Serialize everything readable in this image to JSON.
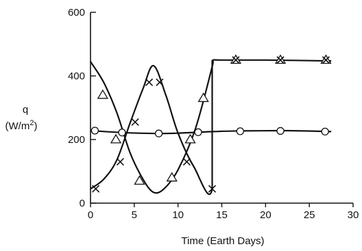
{
  "chart_data": {
    "type": "line",
    "title": "",
    "xlabel": "Time (Earth Days)",
    "ylabel": "q",
    "ylabel_unit_prefix": "(W/m",
    "ylabel_unit_sup": "2",
    "ylabel_unit_suffix": ")",
    "xlim": [
      0,
      30
    ],
    "ylim": [
      0,
      600
    ],
    "xticks": [
      0,
      5,
      10,
      15,
      20,
      25,
      30
    ],
    "yticks": [
      0,
      200,
      400,
      600
    ],
    "grid": false,
    "legend": "none",
    "series": [
      {
        "marker": "circle",
        "curve": [
          [
            0,
            228
          ],
          [
            3.6,
            222
          ],
          [
            7.5,
            219
          ],
          [
            10,
            220
          ],
          [
            14,
            225
          ],
          [
            17,
            227
          ],
          [
            22,
            228
          ],
          [
            27.5,
            225
          ]
        ],
        "points": [
          [
            0.5,
            228
          ],
          [
            3.6,
            222
          ],
          [
            7.8,
            219
          ],
          [
            12.3,
            223
          ],
          [
            17.1,
            226
          ],
          [
            21.7,
            227
          ],
          [
            26.8,
            225
          ]
        ]
      },
      {
        "marker": "triangle",
        "curve": [
          [
            0,
            445
          ],
          [
            1.5,
            380
          ],
          [
            3,
            285
          ],
          [
            4.5,
            160
          ],
          [
            6,
            75
          ],
          [
            7.2,
            34
          ],
          [
            8.4,
            45
          ],
          [
            10,
            105
          ],
          [
            12,
            235
          ],
          [
            14,
            440
          ],
          [
            14,
            450
          ],
          [
            15,
            450
          ],
          [
            20,
            450
          ],
          [
            27.5,
            447
          ]
        ],
        "points": [
          [
            1.4,
            340
          ],
          [
            2.9,
            200
          ],
          [
            5.6,
            70
          ],
          [
            9.3,
            80
          ],
          [
            11.4,
            200
          ],
          [
            12.9,
            330
          ],
          [
            16.6,
            450
          ],
          [
            21.7,
            450
          ],
          [
            26.9,
            450
          ]
        ]
      },
      {
        "marker": "x",
        "curve": [
          [
            0,
            45
          ],
          [
            1.5,
            75
          ],
          [
            3,
            135
          ],
          [
            4.5,
            250
          ],
          [
            6,
            360
          ],
          [
            7.2,
            432
          ],
          [
            8.6,
            340
          ],
          [
            10,
            220
          ],
          [
            11.8,
            115
          ],
          [
            13.9,
            45
          ],
          [
            13.9,
            450
          ]
        ],
        "points": [
          [
            0.6,
            45
          ],
          [
            3.4,
            130
          ],
          [
            5.1,
            255
          ],
          [
            6.7,
            380
          ],
          [
            7.9,
            380
          ],
          [
            11,
            130
          ],
          [
            13.9,
            45
          ],
          [
            16.6,
            450
          ],
          [
            21.7,
            450
          ],
          [
            26.9,
            450
          ]
        ]
      }
    ]
  }
}
